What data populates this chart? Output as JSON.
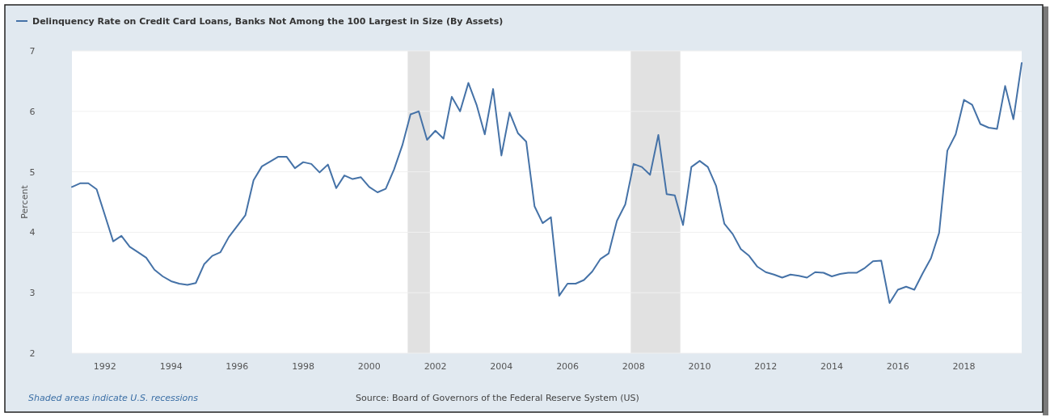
{
  "chart_data": {
    "type": "line",
    "ylabel": "Percent",
    "x": [
      "1991-01",
      "1991-04",
      "1991-07",
      "1991-10",
      "1992-01",
      "1992-04",
      "1992-07",
      "1992-10",
      "1993-01",
      "1993-04",
      "1993-07",
      "1993-10",
      "1994-01",
      "1994-04",
      "1994-07",
      "1994-10",
      "1995-01",
      "1995-04",
      "1995-07",
      "1995-10",
      "1996-01",
      "1996-04",
      "1996-07",
      "1996-10",
      "1997-01",
      "1997-04",
      "1997-07",
      "1997-10",
      "1998-01",
      "1998-04",
      "1998-07",
      "1998-10",
      "1999-01",
      "1999-04",
      "1999-07",
      "1999-10",
      "2000-01",
      "2000-04",
      "2000-07",
      "2000-10",
      "2001-01",
      "2001-04",
      "2001-07",
      "2001-10",
      "2002-01",
      "2002-04",
      "2002-07",
      "2002-10",
      "2003-01",
      "2003-04",
      "2003-07",
      "2003-10",
      "2004-01",
      "2004-04",
      "2004-07",
      "2004-10",
      "2005-01",
      "2005-04",
      "2005-07",
      "2005-10",
      "2006-01",
      "2006-04",
      "2006-07",
      "2006-10",
      "2007-01",
      "2007-04",
      "2007-07",
      "2007-10",
      "2008-01",
      "2008-04",
      "2008-07",
      "2008-10",
      "2009-01",
      "2009-04",
      "2009-07",
      "2009-10",
      "2010-01",
      "2010-04",
      "2010-07",
      "2010-10",
      "2011-01",
      "2011-04",
      "2011-07",
      "2011-10",
      "2012-01",
      "2012-04",
      "2012-07",
      "2012-10",
      "2013-01",
      "2013-04",
      "2013-07",
      "2013-10",
      "2014-01",
      "2014-04",
      "2014-07",
      "2014-10",
      "2015-01",
      "2015-04",
      "2015-07",
      "2015-10",
      "2016-01",
      "2016-04",
      "2016-07",
      "2016-10",
      "2017-01",
      "2017-04",
      "2017-07",
      "2017-10",
      "2018-01",
      "2018-04",
      "2018-07",
      "2018-10",
      "2019-01",
      "2019-04",
      "2019-07",
      "2019-10"
    ],
    "series": [
      {
        "name": "Delinquency Rate on Credit Card Loans, Banks Not Among the 100 Largest in Size (By Assets)",
        "color": "#4572a7",
        "values": [
          4.75,
          4.81,
          4.81,
          4.71,
          4.28,
          3.85,
          3.94,
          3.76,
          3.67,
          3.58,
          3.38,
          3.27,
          3.19,
          3.15,
          3.13,
          3.16,
          3.47,
          3.61,
          3.67,
          3.92,
          4.1,
          4.28,
          4.86,
          5.09,
          5.17,
          5.25,
          5.25,
          5.06,
          5.16,
          5.13,
          4.99,
          5.12,
          4.73,
          4.94,
          4.88,
          4.91,
          4.75,
          4.66,
          4.72,
          5.04,
          5.44,
          5.95,
          6.0,
          5.53,
          5.68,
          5.55,
          6.24,
          6.0,
          6.47,
          6.11,
          5.62,
          6.37,
          5.27,
          5.98,
          5.64,
          5.5,
          4.43,
          4.15,
          4.25,
          2.95,
          3.15,
          3.15,
          3.21,
          3.35,
          3.56,
          3.65,
          4.19,
          4.46,
          5.13,
          5.08,
          4.95,
          5.61,
          4.63,
          4.61,
          4.12,
          5.08,
          5.18,
          5.08,
          4.77,
          4.14,
          3.97,
          3.72,
          3.61,
          3.43,
          3.34,
          3.3,
          3.25,
          3.3,
          3.28,
          3.25,
          3.34,
          3.33,
          3.27,
          3.31,
          3.33,
          3.33,
          3.41,
          3.52,
          3.53,
          2.83,
          3.05,
          3.1,
          3.05,
          3.32,
          3.57,
          3.99,
          5.35,
          5.62,
          6.19,
          6.11,
          5.79,
          5.73,
          5.71,
          6.42,
          5.87,
          6.8
        ]
      }
    ],
    "xlim": [
      "1991-01",
      "2019-10"
    ],
    "xticks": [
      "1992",
      "1994",
      "1996",
      "1998",
      "2000",
      "2002",
      "2004",
      "2006",
      "2008",
      "2010",
      "2012",
      "2014",
      "2016",
      "2018"
    ],
    "ylim": [
      2,
      7
    ],
    "yticks": [
      2,
      3,
      4,
      5,
      6,
      7
    ],
    "grid": "y",
    "legend": "top left",
    "line_style": "solid",
    "marker": "none",
    "bands": [
      {
        "axis": "x",
        "from": "2001-03",
        "to": "2001-11",
        "color": "#e1e1e1"
      },
      {
        "axis": "x",
        "from": "2007-12",
        "to": "2009-06",
        "color": "#e1e1e1"
      }
    ],
    "annotations": [
      "Shaded areas indicate U.S. recessions",
      "Source: Board of Governors of the Federal Reserve System (US)"
    ]
  }
}
